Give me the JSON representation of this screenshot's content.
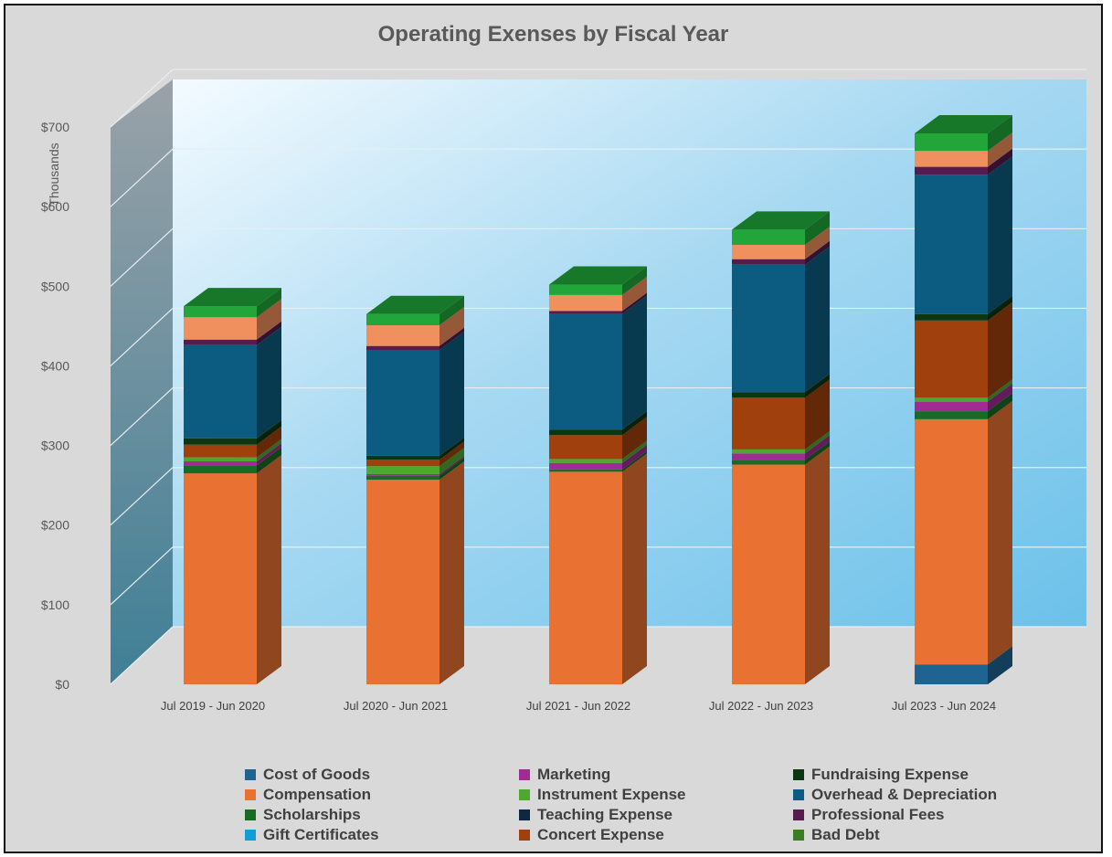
{
  "chart_data": {
    "type": "bar",
    "stacked": true,
    "three_d": true,
    "title": "Operating Exenses by Fiscal Year",
    "ylabel": "Thousands",
    "ylim": [
      0,
      700
    ],
    "yticks": [
      "$0",
      "$100",
      "$200",
      "$300",
      "$400",
      "$500",
      "$600",
      "$700"
    ],
    "ytick_values": [
      0,
      100,
      200,
      300,
      400,
      500,
      600,
      700
    ],
    "grid": true,
    "legend_position": "bottom",
    "categories": [
      "Jul 2019 - Jun 2020",
      "Jul 2020 - Jun 2021",
      "Jul 2021 - Jun 2022",
      "Jul 2022 - Jun 2023",
      "Jul 2023 - Jun 2024"
    ],
    "series": [
      {
        "name": "Cost of Goods",
        "color": "#1f6391",
        "values": [
          0,
          0,
          0,
          0,
          25
        ]
      },
      {
        "name": "Compensation",
        "color": "#e97132",
        "values": [
          265,
          257,
          267,
          276,
          308
        ]
      },
      {
        "name": "Scholarships",
        "color": "#196b24",
        "values": [
          10,
          5,
          3,
          6,
          10
        ]
      },
      {
        "name": "Gift Certificates",
        "color": "#0f9ed5",
        "values": [
          0,
          0,
          0,
          0,
          0
        ]
      },
      {
        "name": "Marketing",
        "color": "#a02b93",
        "values": [
          5,
          2,
          8,
          8,
          12
        ]
      },
      {
        "name": "Instrument Expense",
        "color": "#4ea72e",
        "values": [
          5,
          10,
          5,
          5,
          5
        ]
      },
      {
        "name": "Teaching Expense",
        "color": "#0e2841",
        "values": [
          0,
          0,
          0,
          0,
          0
        ]
      },
      {
        "name": "Concert Expense",
        "color": "#a0410d",
        "values": [
          16,
          8,
          30,
          65,
          97
        ]
      },
      {
        "name": "Fundraising Expense",
        "color": "#0c3512",
        "values": [
          8,
          5,
          7,
          7,
          8
        ]
      },
      {
        "name": "Overhead & Depreciation",
        "color": "#0b5c80",
        "values": [
          117,
          133,
          145,
          160,
          175
        ]
      },
      {
        "name": "Professional Fees",
        "color": "#561c4f",
        "values": [
          7,
          5,
          4,
          7,
          10
        ]
      },
      {
        "name": "Bad Debt",
        "color": "#3b7d23",
        "values": [
          0,
          0,
          0,
          0,
          0
        ]
      },
      {
        "name": "",
        "color": "#f0905e",
        "values": [
          28,
          26,
          20,
          18,
          20
        ]
      },
      {
        "name": "",
        "color": "#22a63a",
        "values": [
          14,
          14,
          13,
          19,
          22
        ]
      }
    ]
  },
  "legend_items": [
    {
      "label": "Cost of Goods",
      "color": "#1f6391"
    },
    {
      "label": "Compensation",
      "color": "#e97132"
    },
    {
      "label": "Scholarships",
      "color": "#196b24"
    },
    {
      "label": "Gift Certificates",
      "color": "#0f9ed5"
    },
    {
      "label": "Marketing",
      "color": "#a02b93"
    },
    {
      "label": "Instrument Expense",
      "color": "#4ea72e"
    },
    {
      "label": "Teaching Expense",
      "color": "#0e2841"
    },
    {
      "label": "Concert Expense",
      "color": "#a0410d"
    },
    {
      "label": "Fundraising Expense",
      "color": "#0c3512"
    },
    {
      "label": "Overhead & Depreciation",
      "color": "#0b5c80"
    },
    {
      "label": "Professional Fees",
      "color": "#561c4f"
    },
    {
      "label": "Bad Debt",
      "color": "#3b7d23"
    }
  ]
}
